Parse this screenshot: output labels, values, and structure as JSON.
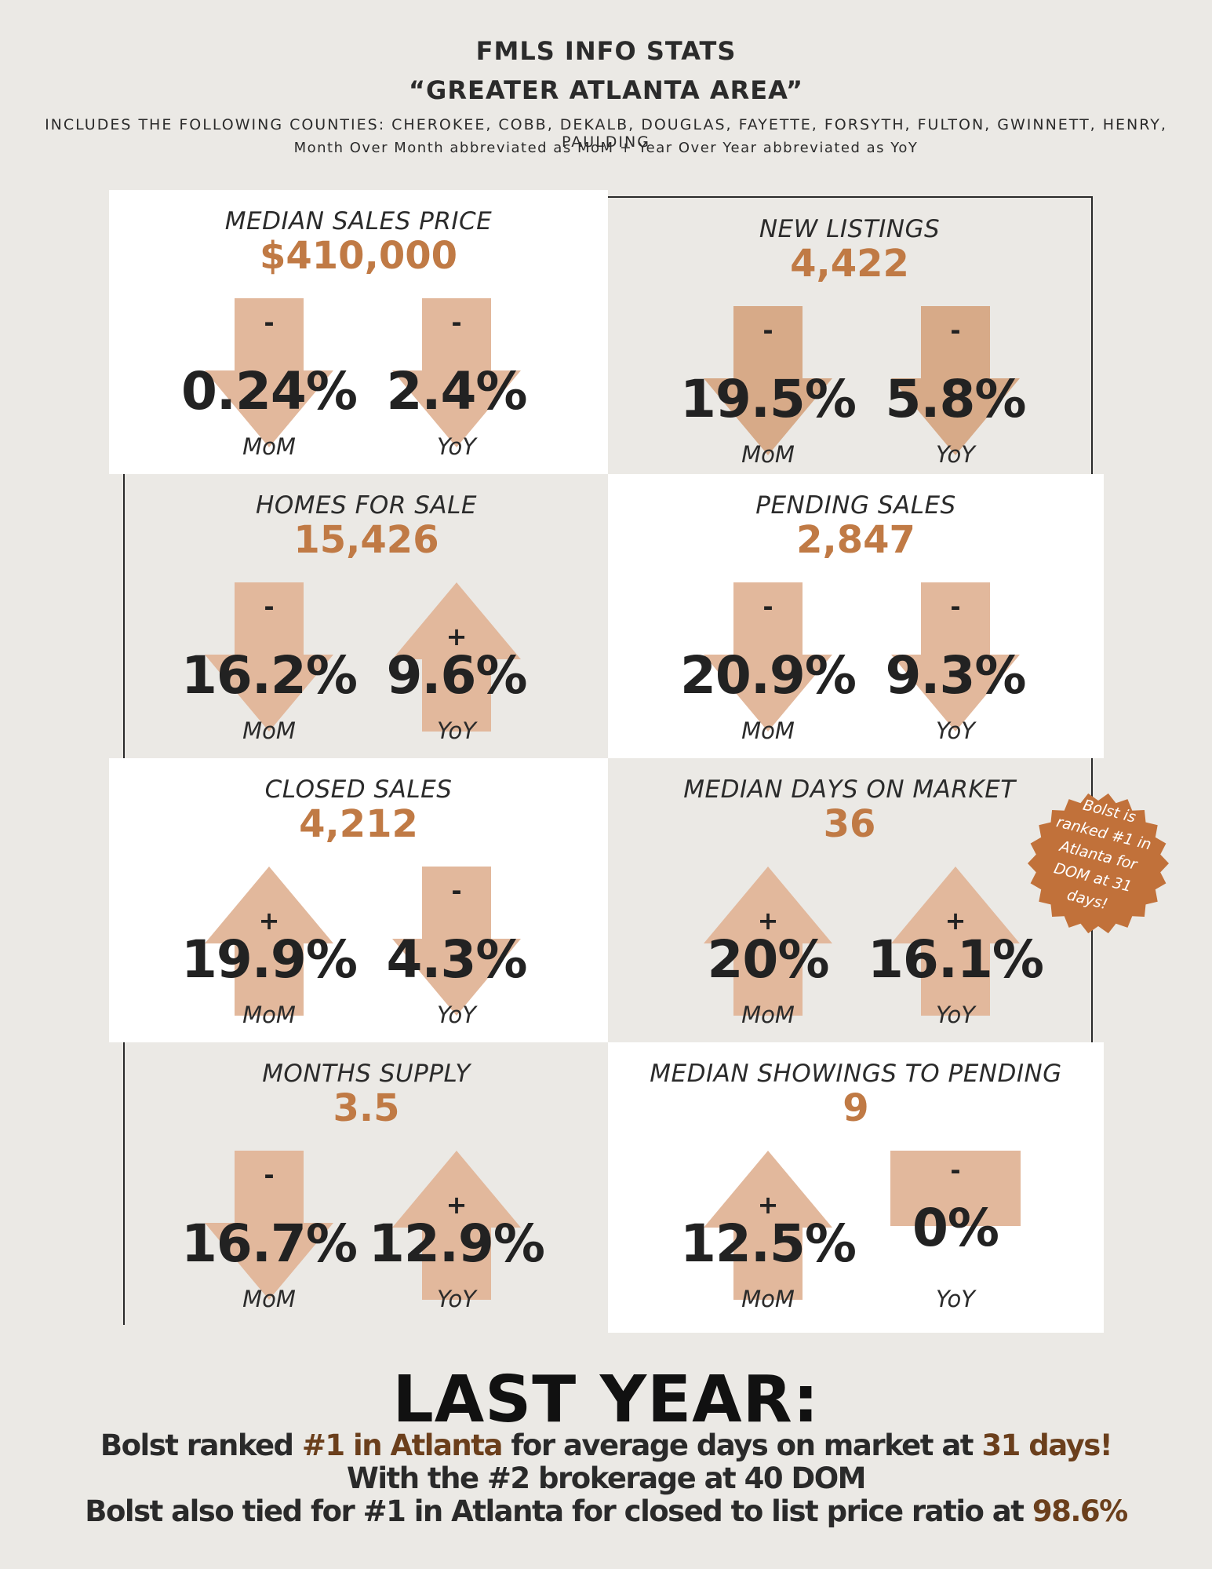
{
  "header": {
    "title": "FMLS INFO STATS",
    "subtitle": "“GREATER ATLANTA AREA”",
    "counties": "INCLUDES THE FOLLOWING COUNTIES: CHEROKEE, COBB, DEKALB, DOUGLAS, FAYETTE, FORSYTH, FULTON, GWINNETT, HENRY, PAULDING",
    "note": "Month Over Month abbreviated as MoM + Year Over Year abbreviated as YoY"
  },
  "colors": {
    "accent": "#c07a45",
    "arrow": "#e2b89c",
    "arrow_dark": "#d7aa88",
    "badge": "#c1713a"
  },
  "cards": [
    {
      "title": "MEDIAN SALES PRICE",
      "value": "$410,000",
      "mom": {
        "sign": "-",
        "direction": "down",
        "pct": "0.24%",
        "label": "MoM"
      },
      "yoy": {
        "sign": "-",
        "direction": "down",
        "pct": "2.4%",
        "label": "YoY"
      }
    },
    {
      "title": "NEW LISTINGS",
      "value": "4,422",
      "mom": {
        "sign": "-",
        "direction": "down",
        "pct": "19.5%",
        "label": "MoM"
      },
      "yoy": {
        "sign": "-",
        "direction": "down",
        "pct": "5.8%",
        "label": "YoY"
      }
    },
    {
      "title": "HOMES FOR SALE",
      "value": "15,426",
      "mom": {
        "sign": "-",
        "direction": "down",
        "pct": "16.2%",
        "label": "MoM"
      },
      "yoy": {
        "sign": "+",
        "direction": "up",
        "pct": "9.6%",
        "label": "YoY"
      }
    },
    {
      "title": "PENDING SALES",
      "value": "2,847",
      "mom": {
        "sign": "-",
        "direction": "down",
        "pct": "20.9%",
        "label": "MoM"
      },
      "yoy": {
        "sign": "-",
        "direction": "down",
        "pct": "9.3%",
        "label": "YoY"
      }
    },
    {
      "title": "CLOSED SALES",
      "value": "4,212",
      "mom": {
        "sign": "+",
        "direction": "up",
        "pct": "19.9%",
        "label": "MoM"
      },
      "yoy": {
        "sign": "-",
        "direction": "down",
        "pct": "4.3%",
        "label": "YoY"
      }
    },
    {
      "title": "MEDIAN DAYS ON MARKET",
      "value": "36",
      "mom": {
        "sign": "+",
        "direction": "up",
        "pct": "20%",
        "label": "MoM"
      },
      "yoy": {
        "sign": "+",
        "direction": "up",
        "pct": "16.1%",
        "label": "YoY"
      }
    },
    {
      "title": "MONTHS SUPPLY",
      "value": "3.5",
      "mom": {
        "sign": "-",
        "direction": "down",
        "pct": "16.7%",
        "label": "MoM"
      },
      "yoy": {
        "sign": "+",
        "direction": "up",
        "pct": "12.9%",
        "label": "YoY"
      }
    },
    {
      "title": "MEDIAN SHOWINGS TO PENDING",
      "value": "9",
      "mom": {
        "sign": "+",
        "direction": "up",
        "pct": "12.5%",
        "label": "MoM"
      },
      "yoy": {
        "sign": "-",
        "direction": "flat",
        "pct": "0%",
        "label": "YoY"
      }
    }
  ],
  "badge": {
    "text": "Bolst is ranked #1 in Atlanta for DOM at 31 days!"
  },
  "last_year": {
    "title": "LAST YEAR:",
    "line1_a": "Bolst ranked ",
    "line1_b": "#1 in Atlanta",
    "line1_c": " for average days on market at ",
    "line1_d": "31 days!",
    "line2": "With the #2 brokerage at 40 DOM",
    "line3_a": "Bolst also tied for #1 in Atlanta for closed to list price ratio at ",
    "line3_b": "98.6%"
  }
}
